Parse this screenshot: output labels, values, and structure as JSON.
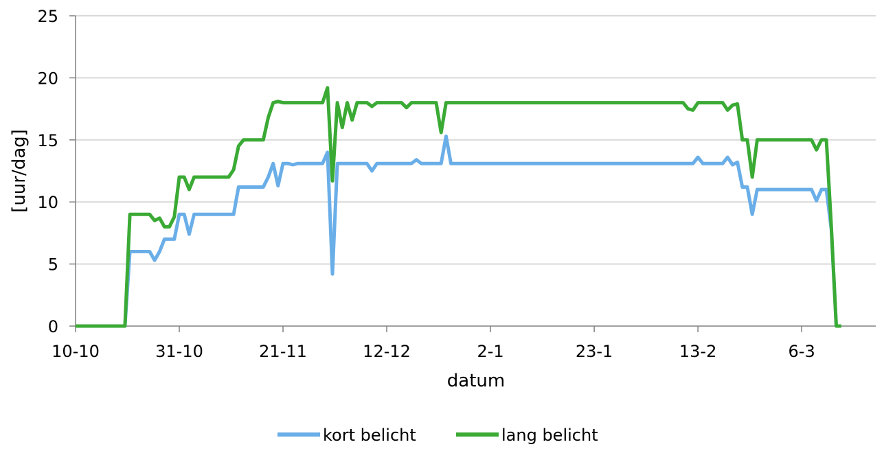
{
  "chart_data": {
    "type": "line",
    "title": "",
    "xlabel": "datum",
    "ylabel": "[uur/dag]",
    "xlim": [
      "10-10",
      "21-3"
    ],
    "ylim": [
      0,
      25
    ],
    "y_ticks": [
      0,
      5,
      10,
      15,
      20,
      25
    ],
    "x_ticks": [
      {
        "date": "10-10",
        "label": "10-10"
      },
      {
        "date": "31-10",
        "label": "31-10"
      },
      {
        "date": "21-11",
        "label": "21-11"
      },
      {
        "date": "12-12",
        "label": "12-12"
      },
      {
        "date": "2-1",
        "label": "2-1"
      },
      {
        "date": "23-1",
        "label": "23-1"
      },
      {
        "date": "13-2",
        "label": "13-2"
      },
      {
        "date": "6-3",
        "label": "6-3"
      }
    ],
    "grid": "horizontal",
    "legend_position": "bottom",
    "series": [
      {
        "name": "kort belicht",
        "color": "#6aaee8",
        "points": [
          [
            "10-10",
            0
          ],
          [
            "20-10",
            0
          ],
          [
            "21-10",
            6
          ],
          [
            "25-10",
            6
          ],
          [
            "26-10",
            5.3
          ],
          [
            "27-10",
            6
          ],
          [
            "28-10",
            7
          ],
          [
            "30-10",
            7
          ],
          [
            "31-10",
            9
          ],
          [
            "1-11",
            9
          ],
          [
            "2-11",
            7.4
          ],
          [
            "3-11",
            9
          ],
          [
            "11-11",
            9
          ],
          [
            "12-11",
            11.2
          ],
          [
            "17-11",
            11.2
          ],
          [
            "18-11",
            12
          ],
          [
            "19-11",
            13.1
          ],
          [
            "20-11",
            11.3
          ],
          [
            "21-11",
            13.1
          ],
          [
            "22-11",
            13.1
          ],
          [
            "23-11",
            13
          ],
          [
            "24-11",
            13.1
          ],
          [
            "29-11",
            13.1
          ],
          [
            "30-11",
            14
          ],
          [
            "1-12",
            4.2
          ],
          [
            "2-12",
            13.1
          ],
          [
            "8-12",
            13.1
          ],
          [
            "9-12",
            12.5
          ],
          [
            "10-12",
            13.1
          ],
          [
            "17-12",
            13.1
          ],
          [
            "18-12",
            13.4
          ],
          [
            "19-12",
            13.1
          ],
          [
            "23-12",
            13.1
          ],
          [
            "24-12",
            15.3
          ],
          [
            "25-12",
            13.1
          ],
          [
            "12-2",
            13.1
          ],
          [
            "13-2",
            13.6
          ],
          [
            "14-2",
            13.1
          ],
          [
            "18-2",
            13.1
          ],
          [
            "19-2",
            13.6
          ],
          [
            "20-2",
            13
          ],
          [
            "21-2",
            13.2
          ],
          [
            "22-2",
            11.2
          ],
          [
            "23-2",
            11.2
          ],
          [
            "24-2",
            9
          ],
          [
            "25-2",
            11
          ],
          [
            "8-3",
            11
          ],
          [
            "9-3",
            10.1
          ],
          [
            "10-3",
            11
          ],
          [
            "11-3",
            11
          ],
          [
            "12-3",
            7.8
          ],
          [
            "13-3",
            0
          ],
          [
            "14-3",
            0
          ]
        ]
      },
      {
        "name": "lang belicht",
        "color": "#3aaa35",
        "points": [
          [
            "10-10",
            0
          ],
          [
            "20-10",
            0
          ],
          [
            "21-10",
            9
          ],
          [
            "25-10",
            9
          ],
          [
            "26-10",
            8.5
          ],
          [
            "27-10",
            8.7
          ],
          [
            "28-10",
            8
          ],
          [
            "29-10",
            8
          ],
          [
            "30-10",
            8.8
          ],
          [
            "31-10",
            12
          ],
          [
            "1-11",
            12
          ],
          [
            "2-11",
            11
          ],
          [
            "3-11",
            12
          ],
          [
            "10-11",
            12
          ],
          [
            "11-11",
            12.6
          ],
          [
            "12-11",
            14.5
          ],
          [
            "13-11",
            15
          ],
          [
            "17-11",
            15
          ],
          [
            "18-11",
            16.8
          ],
          [
            "19-11",
            18
          ],
          [
            "20-11",
            18.1
          ],
          [
            "21-11",
            18
          ],
          [
            "29-11",
            18
          ],
          [
            "30-11",
            19.2
          ],
          [
            "1-12",
            11.7
          ],
          [
            "2-12",
            18
          ],
          [
            "3-12",
            16
          ],
          [
            "4-12",
            18
          ],
          [
            "5-12",
            16.6
          ],
          [
            "6-12",
            18
          ],
          [
            "8-12",
            18
          ],
          [
            "9-12",
            17.7
          ],
          [
            "10-12",
            18
          ],
          [
            "15-12",
            18
          ],
          [
            "16-12",
            17.6
          ],
          [
            "17-12",
            18
          ],
          [
            "22-12",
            18
          ],
          [
            "23-12",
            15.6
          ],
          [
            "24-12",
            18
          ],
          [
            "10-2",
            18
          ],
          [
            "11-2",
            17.5
          ],
          [
            "12-2",
            17.4
          ],
          [
            "13-2",
            18
          ],
          [
            "18-2",
            18
          ],
          [
            "19-2",
            17.4
          ],
          [
            "20-2",
            17.8
          ],
          [
            "21-2",
            17.9
          ],
          [
            "22-2",
            15
          ],
          [
            "23-2",
            15
          ],
          [
            "24-2",
            12
          ],
          [
            "25-2",
            15
          ],
          [
            "8-3",
            15
          ],
          [
            "9-3",
            14.2
          ],
          [
            "10-3",
            15
          ],
          [
            "11-3",
            15
          ],
          [
            "12-3",
            8
          ],
          [
            "13-3",
            0
          ],
          [
            "14-3",
            0
          ]
        ]
      }
    ]
  }
}
